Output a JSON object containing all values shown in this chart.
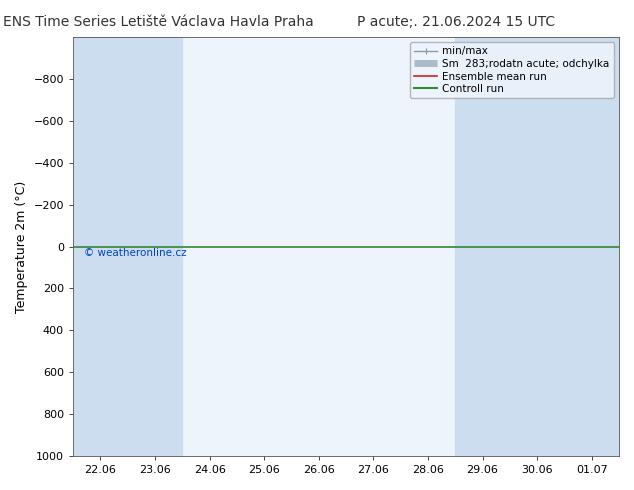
{
  "title_left": "ENS Time Series Letiště Václava Havla Praha",
  "title_right": "P acute;. 21.06.2024 15 UTC",
  "ylabel": "Temperature 2m (°C)",
  "xlim_dates": [
    "22.06",
    "23.06",
    "24.06",
    "25.06",
    "26.06",
    "27.06",
    "28.06",
    "29.06",
    "30.06",
    "01.07"
  ],
  "ylim": [
    -1000,
    1000
  ],
  "yticks": [
    -800,
    -600,
    -400,
    -200,
    0,
    200,
    400,
    600,
    800,
    1000
  ],
  "bg_color": "#ffffff",
  "plot_bg_color": "#eef4fb",
  "shaded_columns_dark": [
    0,
    1,
    7,
    8,
    9
  ],
  "shaded_color_dark": "#ccddf0",
  "shaded_columns_light": [
    3
  ],
  "shaded_color_light": "#ddeaf8",
  "watermark": "© weatheronline.cz",
  "watermark_color": "#0044bb",
  "legend_entries": [
    {
      "label": "min/max",
      "color": "#8899aa",
      "lw": 1.0
    },
    {
      "label": "Sm  283;rodatn acute; odchylka",
      "color": "#aabbcc",
      "lw": 4
    },
    {
      "label": "Ensemble mean run",
      "color": "#cc2222",
      "lw": 1.2
    },
    {
      "label": "Controll run",
      "color": "#338833",
      "lw": 1.5
    }
  ],
  "hline_y": 0,
  "hline_color": "#338833",
  "hline_lw": 1.2,
  "title_fontsize": 10,
  "tick_fontsize": 8,
  "ylabel_fontsize": 9,
  "legend_fontsize": 7.5
}
